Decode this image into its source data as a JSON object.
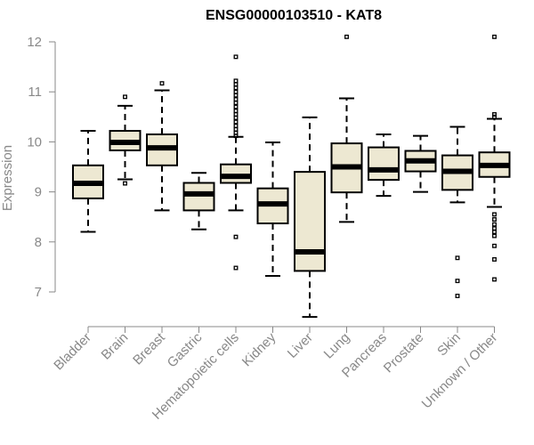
{
  "chart_data": {
    "type": "boxplot",
    "title": "ENSG00000103510 - KAT8",
    "xlabel": "",
    "ylabel": "Expression",
    "ylim": [
      6.25,
      12.3
    ],
    "yticks": [
      7,
      8,
      9,
      10,
      11,
      12
    ],
    "box_fill": "#ede8d2",
    "categories": [
      "Bladder",
      "Brain",
      "Breast",
      "Gastric",
      "Hematopoietic cells",
      "Kidney",
      "Liver",
      "Lung",
      "Pancreas",
      "Prostate",
      "Skin",
      "Unknown / Other"
    ],
    "boxes": [
      {
        "name": "Bladder",
        "whisker_low": 8.2,
        "q1": 8.87,
        "median": 9.17,
        "q3": 9.53,
        "whisker_high": 10.22,
        "outliers": []
      },
      {
        "name": "Brain",
        "whisker_low": 9.25,
        "q1": 9.83,
        "median": 9.99,
        "q3": 10.22,
        "whisker_high": 10.72,
        "outliers": [
          10.9,
          9.17
        ]
      },
      {
        "name": "Breast",
        "whisker_low": 8.63,
        "q1": 9.53,
        "median": 9.88,
        "q3": 10.15,
        "whisker_high": 11.03,
        "outliers": [
          11.17
        ]
      },
      {
        "name": "Gastric",
        "whisker_low": 8.25,
        "q1": 8.63,
        "median": 8.96,
        "q3": 9.18,
        "whisker_high": 9.38,
        "outliers": []
      },
      {
        "name": "Hematopoietic cells",
        "whisker_low": 8.63,
        "q1": 9.18,
        "median": 9.31,
        "q3": 9.55,
        "whisker_high": 10.1,
        "outliers": [
          11.7,
          11.22,
          11.15,
          11.08,
          11.0,
          10.93,
          10.85,
          10.78,
          10.7,
          10.62,
          10.55,
          10.48,
          10.4,
          10.32,
          10.25,
          10.18,
          10.12,
          8.1,
          7.48
        ]
      },
      {
        "name": "Kidney",
        "whisker_low": 7.32,
        "q1": 8.37,
        "median": 8.76,
        "q3": 9.07,
        "whisker_high": 9.99,
        "outliers": []
      },
      {
        "name": "Liver",
        "whisker_low": 6.5,
        "q1": 7.42,
        "median": 7.8,
        "q3": 9.4,
        "whisker_high": 10.49,
        "outliers": []
      },
      {
        "name": "Lung",
        "whisker_low": 8.4,
        "q1": 8.99,
        "median": 9.5,
        "q3": 9.97,
        "whisker_high": 10.87,
        "outliers": [
          12.1
        ]
      },
      {
        "name": "Pancreas",
        "whisker_low": 8.92,
        "q1": 9.24,
        "median": 9.44,
        "q3": 9.89,
        "whisker_high": 10.15,
        "outliers": []
      },
      {
        "name": "Prostate",
        "whisker_low": 9.0,
        "q1": 9.41,
        "median": 9.62,
        "q3": 9.82,
        "whisker_high": 10.12,
        "outliers": []
      },
      {
        "name": "Skin",
        "whisker_low": 8.79,
        "q1": 9.04,
        "median": 9.41,
        "q3": 9.73,
        "whisker_high": 10.3,
        "outliers": [
          7.68,
          7.22,
          6.92
        ]
      },
      {
        "name": "Unknown / Other",
        "whisker_low": 8.7,
        "q1": 9.3,
        "median": 9.53,
        "q3": 9.79,
        "whisker_high": 10.46,
        "outliers": [
          12.1,
          10.55,
          10.5,
          8.55,
          8.45,
          8.35,
          8.27,
          8.2,
          8.12,
          7.92,
          7.65,
          7.25
        ]
      }
    ]
  }
}
